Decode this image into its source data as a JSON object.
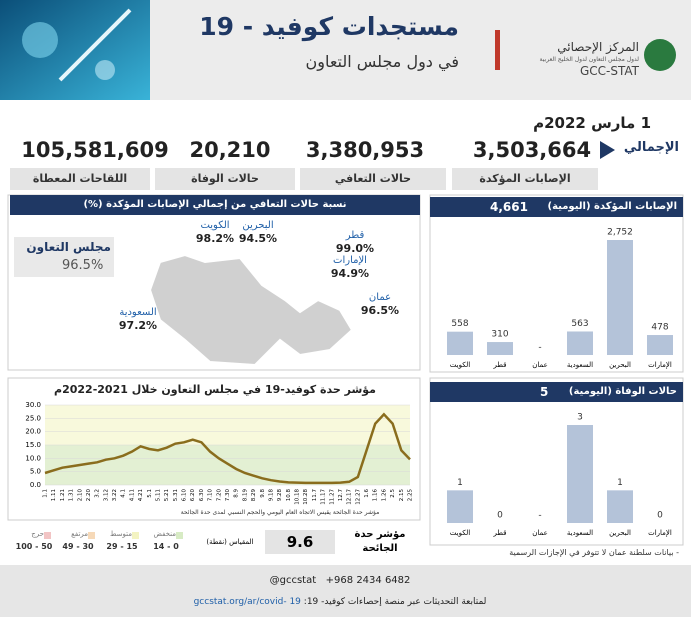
{
  "header": {
    "title": "مستجدات كوفيد - 19",
    "subtitle": "في دول مجلس التعاون",
    "org_name": "المركز الإحصائي",
    "org_subtitle": "لدول مجلس التعاون لدول الخليج العربية",
    "org_short": "GCC-STAT"
  },
  "date": "1 مارس 2022م",
  "totals": {
    "label": "الإجمالي",
    "items": [
      {
        "value": "3,503,664",
        "label": "الإصابات المؤكدة"
      },
      {
        "value": "3,380,953",
        "label": "حالات التعافي"
      },
      {
        "value": "20,210",
        "label": "حالات الوفاة"
      },
      {
        "value": "105,581,609",
        "label": "اللقاحات المعطاة"
      }
    ]
  },
  "recovery_map": {
    "title": "نسبة حالات التعافي من إجمالي الإصابات المؤكدة (%)",
    "gcc": {
      "name": "مجلس التعاون",
      "value": "96.5%"
    },
    "countries": [
      {
        "name": "الكويت",
        "value": "98.2%"
      },
      {
        "name": "البحرين",
        "value": "94.5%"
      },
      {
        "name": "قطر",
        "value": "99.0%"
      },
      {
        "name": "الإمارات",
        "value": "94.9%"
      },
      {
        "name": "عمان",
        "value": "96.5%"
      },
      {
        "name": "السعودية",
        "value": "97.2%"
      }
    ]
  },
  "chart_data": [
    {
      "type": "bar",
      "title": "الإصابات المؤكدة (اليومية)",
      "total": "4,661",
      "categories": [
        "الكويت",
        "قطر",
        "عمان",
        "السعودية",
        "البحرين",
        "الإمارات"
      ],
      "values": [
        558,
        310,
        null,
        563,
        2752,
        478
      ],
      "value_labels": [
        "558",
        "310",
        "-",
        "563",
        "2,752",
        "478"
      ],
      "color": "#b4c3d9"
    },
    {
      "type": "bar",
      "title": "حالات الوفاة (اليومية)",
      "total": "5",
      "categories": [
        "الكويت",
        "قطر",
        "عمان",
        "السعودية",
        "البحرين",
        "الإمارات"
      ],
      "values": [
        1,
        0,
        null,
        3,
        1,
        0
      ],
      "value_labels": [
        "1",
        "0",
        "-",
        "3",
        "1",
        "0"
      ],
      "color": "#b4c3d9"
    },
    {
      "type": "line",
      "title": "مؤشر حدة كوفيد-19 في مجلس التعاون خلال 2021-2022م",
      "note": "مؤشر حدة الجائحة يقيس الاتجاه العام اليومي والحجم النسبي لمدى حدة الجائحة",
      "x": [
        "1.1",
        "1.11",
        "1.21",
        "1.31",
        "2.10",
        "2.20",
        "3.2",
        "3.12",
        "3.22",
        "4.1",
        "4.11",
        "4.21",
        "5.1",
        "5.11",
        "5.21",
        "5.31",
        "6.10",
        "6.20",
        "6.30",
        "7.10",
        "7.20",
        "7.30",
        "8.9",
        "8.19",
        "8.29",
        "9.8",
        "9.18",
        "9.28",
        "10.8",
        "10.18",
        "10.28",
        "11.7",
        "11.17",
        "11.27",
        "12.7",
        "12.17",
        "12.27",
        "1.6",
        "1.16",
        "1.26",
        "2.5",
        "2.15",
        "2.25"
      ],
      "series": [
        {
          "color": "#8a6d1d",
          "values": [
            4.5,
            5.5,
            6.5,
            7,
            7.5,
            8,
            8.5,
            9.5,
            10,
            11,
            12.5,
            14.5,
            13.5,
            13,
            14,
            15.5,
            16,
            17,
            16,
            12.5,
            10,
            8,
            6,
            4.5,
            3.5,
            2.5,
            1.8,
            1.3,
            1,
            0.9,
            0.8,
            0.8,
            0.8,
            0.8,
            0.9,
            1.2,
            3,
            13,
            23,
            26.5,
            23,
            13,
            9.6
          ]
        }
      ],
      "ylim": [
        0,
        30
      ],
      "yticks": [
        {
          "value": 0,
          "label": "0.0"
        },
        {
          "value": 5,
          "label": "5.0"
        },
        {
          "value": 10,
          "label": "10.0"
        },
        {
          "value": 15,
          "label": "15.0"
        },
        {
          "value": 20,
          "label": "20.0"
        },
        {
          "value": 25,
          "label": "25.0"
        },
        {
          "value": 30,
          "label": "30.0"
        }
      ],
      "bands": [
        {
          "range": [
            0,
            15
          ],
          "color": "#e3f0d3"
        },
        {
          "range": [
            15,
            30
          ],
          "color": "#f8f9dc"
        }
      ],
      "grid": true
    }
  ],
  "note": "- بيانات سلطنة عمان لا تتوفر في الإجازات الرسمية",
  "severity": {
    "label": "مؤشر حدة الجائحة",
    "value": "9.6",
    "unit": "المقياس (نقطة)",
    "scale": [
      {
        "name": "حرج",
        "range": "100 - 50",
        "color": "#f2c4c4"
      },
      {
        "name": "مرتفع",
        "range": "49 - 30",
        "color": "#f6d9b8"
      },
      {
        "name": "متوسط",
        "range": "29 - 15",
        "color": "#f3f3c2"
      },
      {
        "name": "منخفض",
        "range": "14 - 0",
        "color": "#d7ebc4"
      }
    ]
  },
  "footer": {
    "social": "@gccstat",
    "phone": "+968 2434 6482",
    "text": "لمتابعة التحديثات عبر منصة إحصاءات كوفيد- 19:",
    "url": "gccstat.org/ar/covid- 19"
  }
}
